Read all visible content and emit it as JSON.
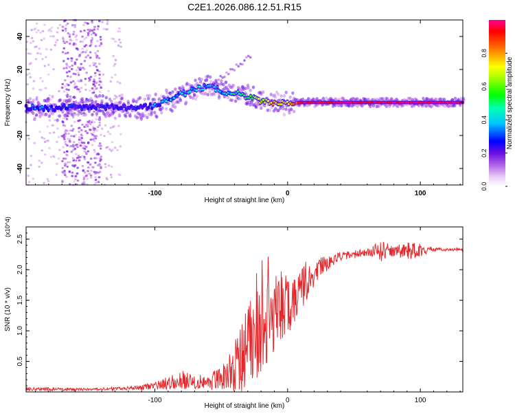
{
  "title": "C2E1.2026.086.12.51.R15",
  "chart_data": [
    {
      "type": "heatmap",
      "name": "spectrogram",
      "xlabel": "Height of straight line (km)",
      "ylabel": "Frequency (Hz)",
      "xlim": [
        -197,
        132
      ],
      "ylim": [
        -50,
        50
      ],
      "xticks": [
        -100,
        0,
        100
      ],
      "xtick_labels": [
        "-100",
        "0",
        "100"
      ],
      "yticks": [
        40,
        20,
        0,
        -20,
        -40
      ],
      "ytick_labels": [
        "40",
        "20",
        "0",
        "-20",
        "-40"
      ],
      "colorbar": {
        "label": "Normalized spectral amplitude",
        "range": [
          0,
          1
        ],
        "ticks": [
          0,
          0.2,
          0.4,
          0.6,
          0.8
        ],
        "tick_labels": [
          "0.0",
          "0.2",
          "0.4",
          "0.6",
          "0.8"
        ],
        "colors": [
          "#ffffff",
          "#d9a8f0",
          "#8a1fe0",
          "#0000ff",
          "#00ffff",
          "#00ff00",
          "#ffff00",
          "#ff8000",
          "#ff0000",
          "#ff00a0"
        ]
      },
      "ridge": [
        {
          "x": -197,
          "f": -3,
          "amp": 0.35
        },
        {
          "x": -185,
          "f": -4,
          "amp": 0.38
        },
        {
          "x": -170,
          "f": -3,
          "amp": 0.32
        },
        {
          "x": -155,
          "f": -3,
          "amp": 0.3
        },
        {
          "x": -140,
          "f": -3,
          "amp": 0.28
        },
        {
          "x": -125,
          "f": -3,
          "amp": 0.3
        },
        {
          "x": -110,
          "f": -3,
          "amp": 0.32
        },
        {
          "x": -100,
          "f": -2,
          "amp": 0.36
        },
        {
          "x": -90,
          "f": 1,
          "amp": 0.4
        },
        {
          "x": -80,
          "f": 5,
          "amp": 0.42
        },
        {
          "x": -70,
          "f": 8,
          "amp": 0.45
        },
        {
          "x": -60,
          "f": 10,
          "amp": 0.42
        },
        {
          "x": -52,
          "f": 8,
          "amp": 0.4
        },
        {
          "x": -45,
          "f": 6,
          "amp": 0.45
        },
        {
          "x": -35,
          "f": 5,
          "amp": 0.5
        },
        {
          "x": -28,
          "f": 3,
          "amp": 0.55
        },
        {
          "x": -20,
          "f": 1,
          "amp": 0.65
        },
        {
          "x": -10,
          "f": 0,
          "amp": 0.72
        },
        {
          "x": 0,
          "f": -1,
          "amp": 0.7
        },
        {
          "x": 10,
          "f": 0,
          "amp": 0.9
        },
        {
          "x": 40,
          "f": 0,
          "amp": 0.95
        },
        {
          "x": 80,
          "f": 0,
          "amp": 0.97
        },
        {
          "x": 132,
          "f": 0,
          "amp": 0.97
        }
      ]
    },
    {
      "type": "line",
      "name": "snr",
      "xlabel": "Height of straight line (km)",
      "ylabel": "SNR (10 * v/v)",
      "y_multiplier": "(x10^4)",
      "xlim": [
        -197,
        132
      ],
      "ylim": [
        0,
        2.7
      ],
      "xticks": [
        -100,
        0,
        100
      ],
      "xtick_labels": [
        "-100",
        "0",
        "100"
      ],
      "yticks": [
        0.5,
        1.0,
        1.5,
        2.0,
        2.5
      ],
      "ytick_labels": [
        "0.5",
        "1.0",
        "1.5",
        "2.0",
        "2.5"
      ],
      "color": "#e8262a",
      "envelope": [
        {
          "x": -197,
          "mean": 0.05,
          "noise": 0.03
        },
        {
          "x": -150,
          "mean": 0.04,
          "noise": 0.02
        },
        {
          "x": -120,
          "mean": 0.06,
          "noise": 0.03
        },
        {
          "x": -100,
          "mean": 0.1,
          "noise": 0.06
        },
        {
          "x": -80,
          "mean": 0.2,
          "noise": 0.15
        },
        {
          "x": -60,
          "mean": 0.15,
          "noise": 0.12
        },
        {
          "x": -45,
          "mean": 0.3,
          "noise": 0.25
        },
        {
          "x": -35,
          "mean": 0.55,
          "noise": 0.6
        },
        {
          "x": -25,
          "mean": 0.9,
          "noise": 0.8
        },
        {
          "x": -15,
          "mean": 1.2,
          "noise": 0.7
        },
        {
          "x": -5,
          "mean": 1.35,
          "noise": 0.55
        },
        {
          "x": 5,
          "mean": 1.5,
          "noise": 0.45
        },
        {
          "x": 15,
          "mean": 1.8,
          "noise": 0.3
        },
        {
          "x": 25,
          "mean": 2.05,
          "noise": 0.15
        },
        {
          "x": 40,
          "mean": 2.22,
          "noise": 0.07
        },
        {
          "x": 60,
          "mean": 2.28,
          "noise": 0.06
        },
        {
          "x": 70,
          "mean": 2.3,
          "noise": 0.18
        },
        {
          "x": 80,
          "mean": 2.3,
          "noise": 0.1
        },
        {
          "x": 95,
          "mean": 2.32,
          "noise": 0.15
        },
        {
          "x": 110,
          "mean": 2.33,
          "noise": 0.03
        },
        {
          "x": 132,
          "mean": 2.33,
          "noise": 0.02
        }
      ]
    }
  ]
}
